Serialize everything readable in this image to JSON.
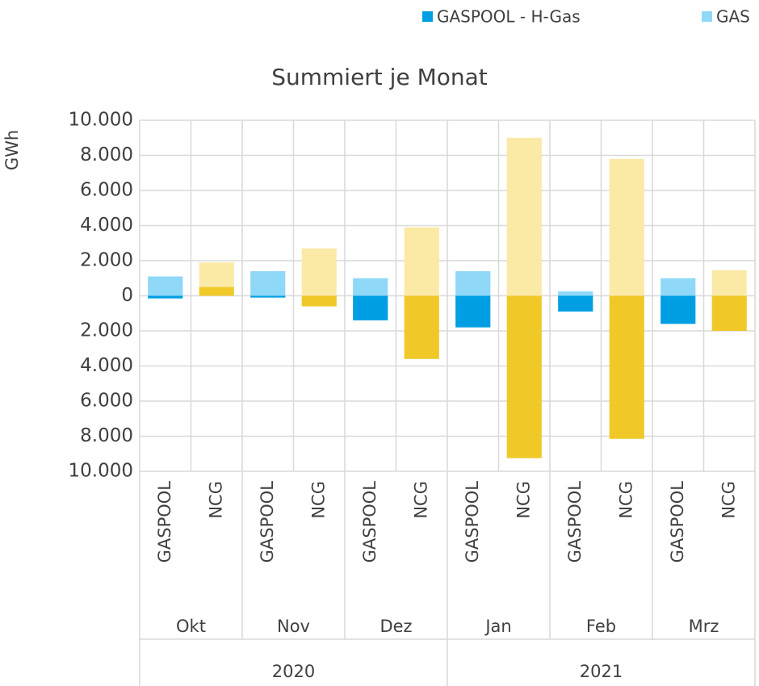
{
  "chart_data": {
    "type": "bar",
    "stacked": true,
    "title": "Summiert je Monat",
    "ylabel": "GWh",
    "categories": [
      "GASPOOL",
      "NCG",
      "GASPOOL",
      "NCG",
      "GASPOOL",
      "NCG",
      "GASPOOL",
      "NCG",
      "GASPOOL",
      "NCG",
      "GASPOOL",
      "NCG"
    ],
    "months": [
      "Okt",
      "Nov",
      "Dez",
      "Jan",
      "Feb",
      "Mrz"
    ],
    "years": [
      "2020",
      "2021"
    ],
    "series": [
      {
        "name": "GASPOOL - H-Gas",
        "color": "#009fe3",
        "values": [
          -150,
          0,
          -100,
          0,
          -1400,
          0,
          -1800,
          0,
          -900,
          0,
          -1600,
          0
        ]
      },
      {
        "name": "GAS",
        "color": "#8fd8f8",
        "values": [
          1100,
          0,
          1400,
          0,
          1000,
          0,
          1400,
          0,
          250,
          0,
          1000,
          0
        ]
      },
      {
        "color": "#f0c928",
        "values": [
          0,
          500,
          0,
          -600,
          0,
          -3600,
          0,
          -9250,
          0,
          -8150,
          0,
          -2000
        ]
      },
      {
        "color": "#fbe9a6",
        "values": [
          0,
          1400,
          0,
          2700,
          0,
          3900,
          0,
          9000,
          0,
          7800,
          0,
          1450
        ]
      }
    ],
    "ylim": [
      -10000,
      10000
    ],
    "yticks": [
      {
        "value": 10000,
        "label": "10.000"
      },
      {
        "value": 8000,
        "label": "8.000"
      },
      {
        "value": 6000,
        "label": "6.000"
      },
      {
        "value": 4000,
        "label": "4.000"
      },
      {
        "value": 2000,
        "label": "2.000"
      },
      0,
      {
        "value": -2000,
        "label": "2.000"
      },
      {
        "value": -4000,
        "label": "4.000"
      },
      {
        "value": -6000,
        "label": "6.000"
      },
      {
        "value": -8000,
        "label": "8.000"
      },
      {
        "value": -10000,
        "label": "10.000"
      }
    ],
    "grid": true
  }
}
